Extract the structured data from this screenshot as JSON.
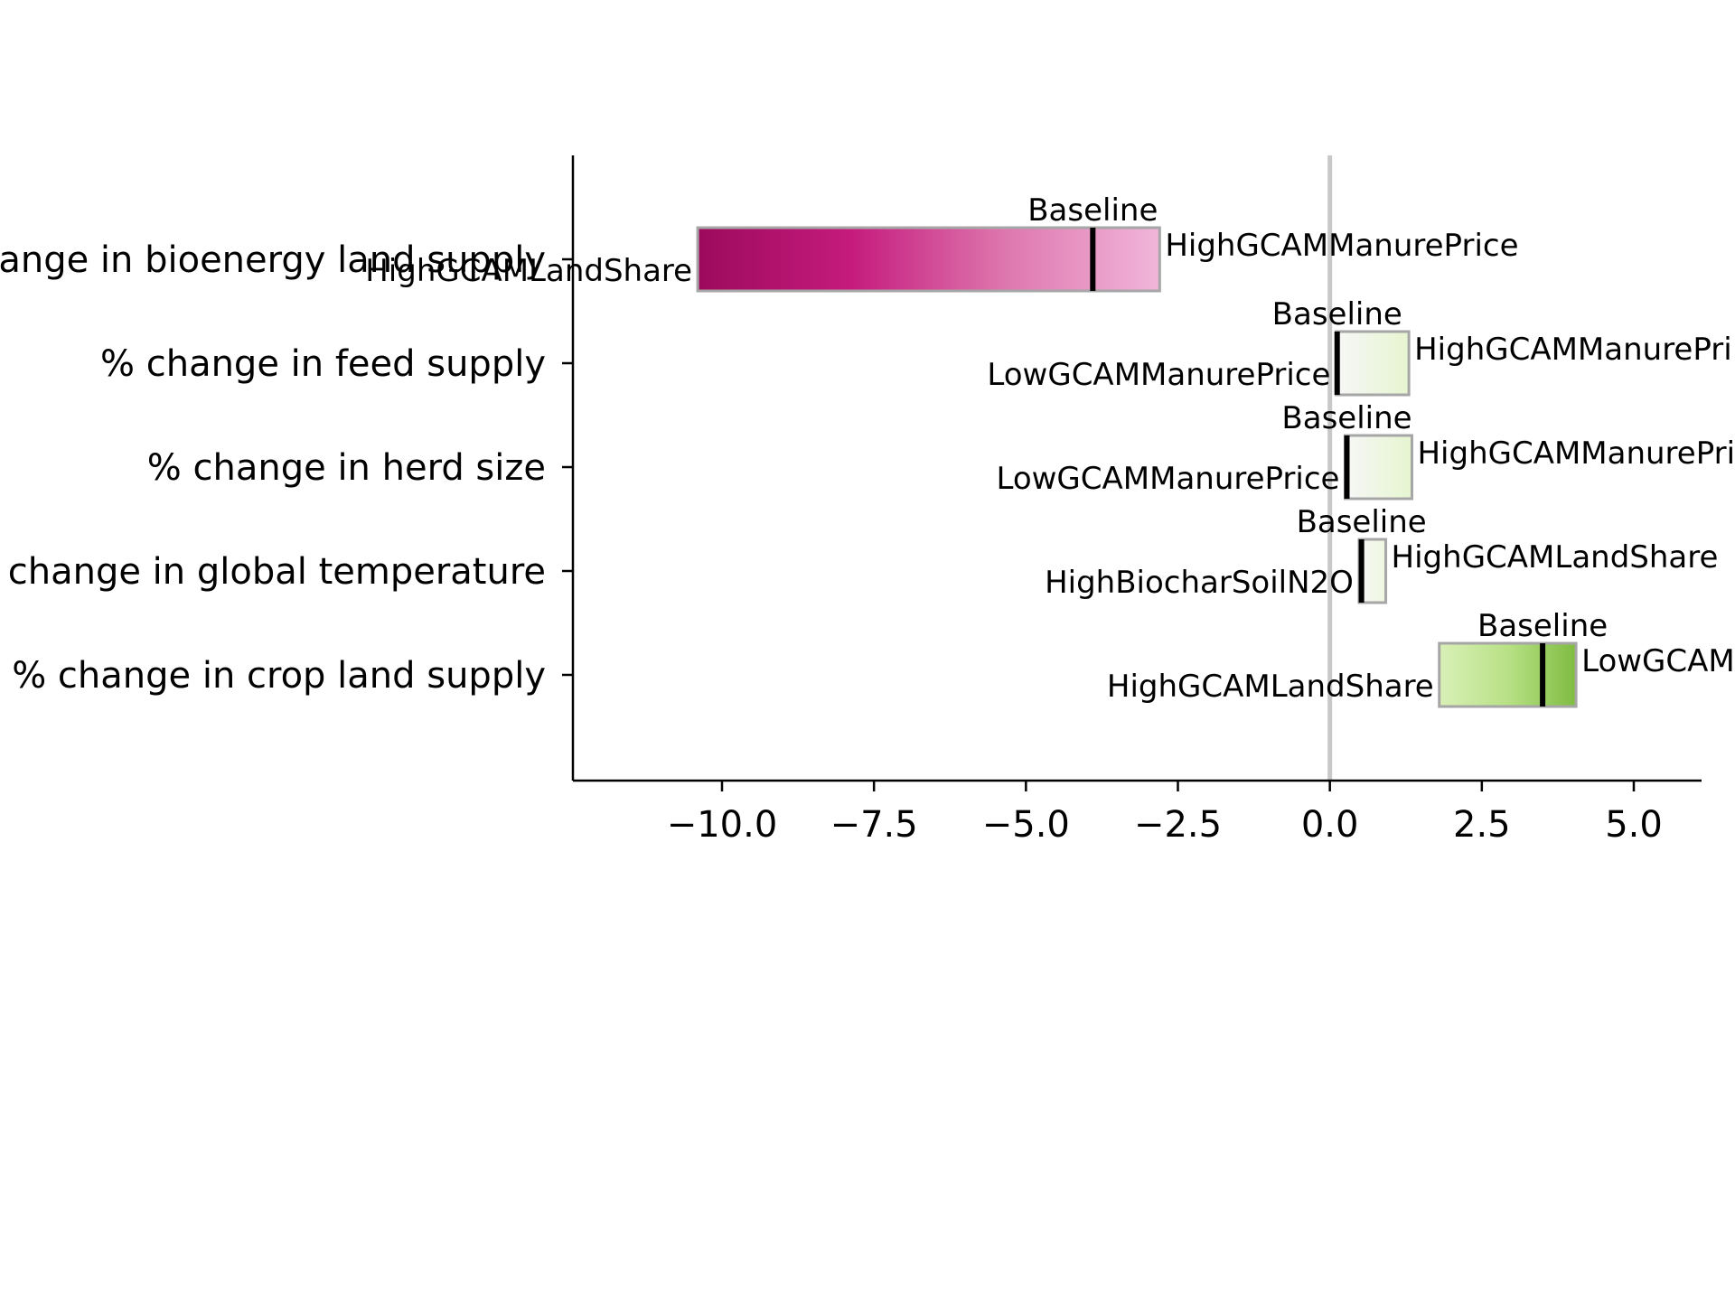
{
  "chart_data": {
    "type": "bar",
    "orientation": "horizontal",
    "title": "",
    "xlabel": "",
    "ylabel": "",
    "xlim": [
      -12.4,
      6.2
    ],
    "xticks": [
      -10.0,
      -7.5,
      -5.0,
      -2.5,
      0.0,
      2.5,
      5.0
    ],
    "xtick_labels": [
      "−10.0",
      "−7.5",
      "−5.0",
      "−2.5",
      "0.0",
      "2.5",
      "5.0"
    ],
    "reference_line": 0.0,
    "grid": false,
    "legend": "none",
    "baseline_label": "Baseline",
    "rows": [
      {
        "category": "% change in bioenergy land supply",
        "low": -10.4,
        "baseline": -3.9,
        "high": -2.8,
        "low_label": "HighGCAMLandShare",
        "high_label": "HighGCAMManurePrice",
        "gradient_colors": [
          "#9c0a5c",
          "#c51b7d",
          "#de77ae",
          "#f1b6da"
        ]
      },
      {
        "category": "% change in feed supply",
        "low": 0.1,
        "baseline": 0.12,
        "high": 1.3,
        "low_label": "LowGCAMManurePrice",
        "high_label": "HighGCAMManurePri",
        "gradient_colors": [
          "#f7f7f7",
          "#e6f5d0"
        ]
      },
      {
        "category": "% change in herd size",
        "low": 0.25,
        "baseline": 0.28,
        "high": 1.35,
        "low_label": "LowGCAMManurePrice",
        "high_label": "HighGCAMManurePri",
        "gradient_colors": [
          "#f7f7f7",
          "#e6f5d0"
        ]
      },
      {
        "category": "% change in global temperature",
        "low": 0.48,
        "baseline": 0.52,
        "high": 0.92,
        "low_label": "HighBiocharSoilN2O",
        "high_label": "HighGCAMLandShare",
        "gradient_colors": [
          "#f7f7f7",
          "#eef7e0"
        ]
      },
      {
        "category": "% change in crop land supply",
        "low": 1.8,
        "baseline": 3.5,
        "high": 4.05,
        "low_label": "HighGCAMLandShare",
        "high_label": "LowGCAM",
        "gradient_colors": [
          "#d9f0b8",
          "#b8e186",
          "#7fbc41"
        ]
      }
    ],
    "styles": {
      "bar_edge": "#a6a6a6",
      "baseline_mark": "#000000",
      "zero_line": "#c8c8c8",
      "axis": "#000000"
    }
  }
}
